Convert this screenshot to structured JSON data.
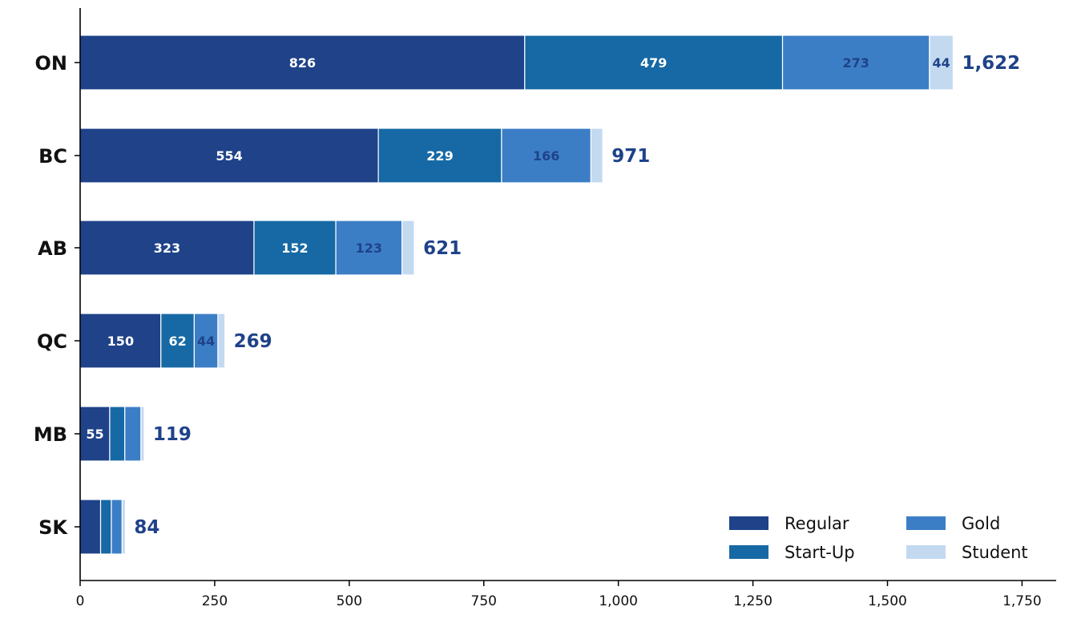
{
  "chart_data": {
    "type": "bar",
    "orientation": "horizontal",
    "stacked": true,
    "categories": [
      "ON",
      "BC",
      "AB",
      "QC",
      "MB",
      "SK"
    ],
    "series": [
      {
        "name": "Regular",
        "values": [
          826,
          554,
          323,
          150,
          55,
          38
        ],
        "color": "#1f4289",
        "label_color": "#ffffff"
      },
      {
        "name": "Start-Up",
        "values": [
          479,
          229,
          152,
          62,
          28,
          20
        ],
        "color": "#1669a4",
        "label_color": "#ffffff"
      },
      {
        "name": "Gold",
        "values": [
          273,
          166,
          123,
          44,
          30,
          20
        ],
        "color": "#3c7ec6",
        "label_color": "#1f4289"
      },
      {
        "name": "Student",
        "values": [
          44,
          22,
          23,
          13,
          6,
          6
        ],
        "color": "#c3d9f0",
        "label_color": "#1f4289"
      }
    ],
    "segment_labels_shown": [
      [
        true,
        true,
        true,
        true
      ],
      [
        true,
        true,
        true,
        false
      ],
      [
        true,
        true,
        true,
        false
      ],
      [
        true,
        true,
        true,
        false
      ],
      [
        true,
        false,
        false,
        false
      ],
      [
        false,
        false,
        false,
        false
      ]
    ],
    "totals": [
      "1,622",
      "971",
      "621",
      "269",
      "119",
      "84"
    ],
    "total_color": "#1f4289",
    "xlim": [
      0,
      1800
    ],
    "xticks": [
      0,
      250,
      500,
      750,
      1000,
      1250,
      1500,
      1750
    ],
    "xtick_labels": [
      "0",
      "250",
      "500",
      "750",
      "1,000",
      "1,250",
      "1,500",
      "1,750"
    ],
    "xlabel": "",
    "ylabel": "",
    "title": "",
    "grid": false,
    "legend_position": "bottom-right"
  }
}
